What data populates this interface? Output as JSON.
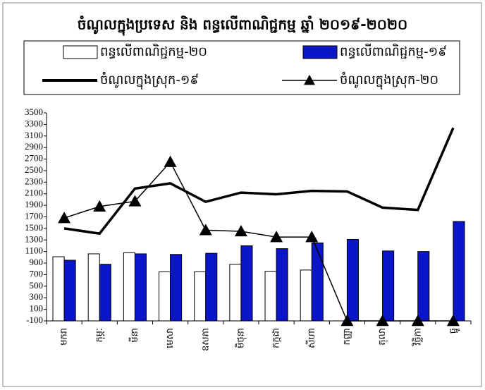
{
  "chart_data": {
    "type": "bar-line",
    "title": "ចំណូលក្នុងប្រទេស និង ពន្ធលើពាណិជ្ជកម្ម ឆ្នាំ ២០១៩-២០២០",
    "categories": [
      "មករា",
      "កុម្ភៈ",
      "មីនា",
      "មេសា",
      "ឧសភា",
      "មិថុនា",
      "កក្កដា",
      "សីហា",
      "កញ្ញា",
      "តុលា",
      "វិច្ឆិកា",
      "ធ្នូ"
    ],
    "series": [
      {
        "name": "ពន្ធលើពាណិជ្ជកម្ម-២០",
        "kind": "bar",
        "color": "#ffffff",
        "values": [
          1010,
          1060,
          1080,
          750,
          750,
          880,
          760,
          780,
          null,
          null,
          null,
          null
        ]
      },
      {
        "name": "ពន្ធលើពាណិជ្ជកម្ម-១៩",
        "kind": "bar",
        "color": "#0a16c8",
        "values": [
          950,
          880,
          1060,
          1050,
          1070,
          1200,
          1150,
          1250,
          1310,
          1110,
          1100,
          1620
        ]
      },
      {
        "name": "ចំណូលក្នុងស្រុក-១៩",
        "kind": "line",
        "color": "#000000",
        "values": [
          1500,
          1410,
          2190,
          2280,
          1960,
          2120,
          2090,
          2150,
          2140,
          1860,
          1820,
          3240
        ]
      },
      {
        "name": "ចំណូលក្នុងស្រុក-២០",
        "kind": "line-marker",
        "color": "#000000",
        "values": [
          1680,
          1880,
          1970,
          2650,
          1470,
          1450,
          1350,
          1350,
          -100,
          -100,
          -100,
          -100
        ]
      }
    ],
    "ylim": [
      -100,
      3500
    ],
    "yticks": [
      -100,
      100,
      300,
      500,
      700,
      900,
      1100,
      1300,
      1500,
      1700,
      1900,
      2100,
      2300,
      2500,
      2700,
      2900,
      3100,
      3300,
      3500
    ],
    "grid": false
  }
}
